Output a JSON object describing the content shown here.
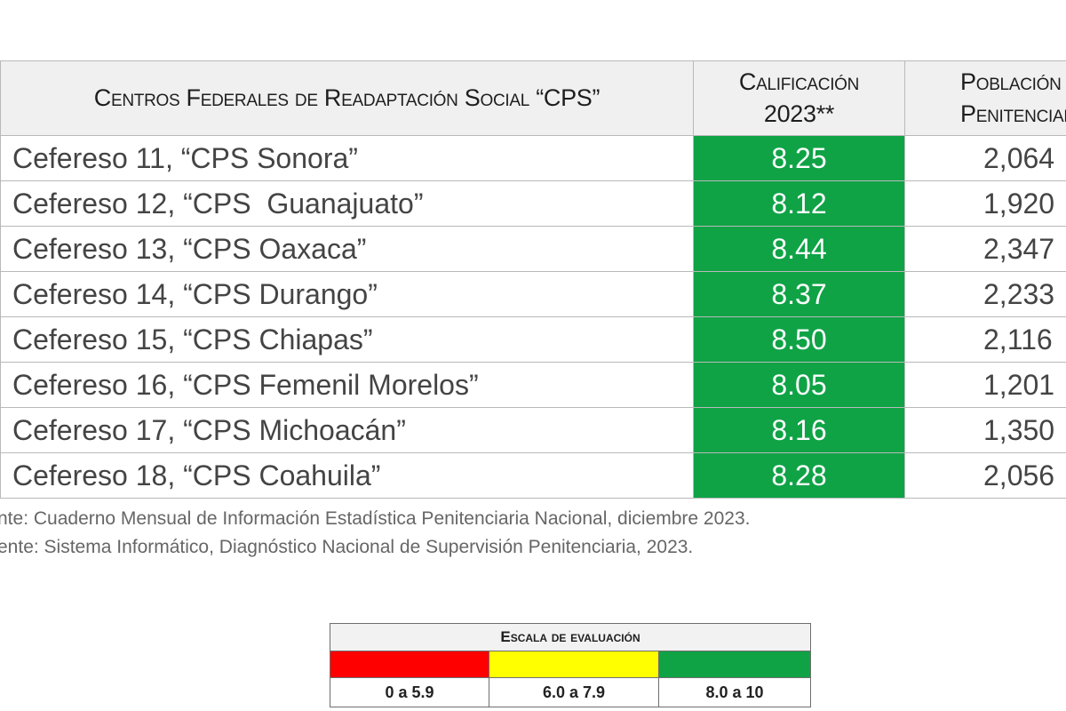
{
  "table": {
    "headers": {
      "name": "Centros Federales de Readaptación Social “CPS”",
      "score_line1": "Calificación",
      "score_line2": "2023**",
      "pop_line1": "Población",
      "pop_line2": "Penitenciaria"
    },
    "score_color": "#0fa346",
    "rows": [
      {
        "name": "Cefereso 11, “CPS Sonora”",
        "score": "8.25",
        "pop": "2,064"
      },
      {
        "name": "Cefereso 12, “CPS  Guanajuato”",
        "score": "8.12",
        "pop": "1,920"
      },
      {
        "name": "Cefereso 13, “CPS Oaxaca”",
        "score": "8.44",
        "pop": "2,347"
      },
      {
        "name": "Cefereso 14, “CPS Durango”",
        "score": "8.37",
        "pop": "2,233"
      },
      {
        "name": "Cefereso 15, “CPS Chiapas”",
        "score": "8.50",
        "pop": "2,116"
      },
      {
        "name": "Cefereso 16, “CPS Femenil Morelos”",
        "score": "8.05",
        "pop": "1,201"
      },
      {
        "name": "Cefereso 17, “CPS Michoacán”",
        "score": "8.16",
        "pop": "1,350"
      },
      {
        "name": "Cefereso 18, “CPS Coahuila”",
        "score": "8.28",
        "pop": "2,056"
      }
    ]
  },
  "notes": [
    "nte: Cuaderno Mensual de Información Estadística Penitenciaria Nacional, diciembre 2023.",
    "ente: Sistema Informático, Diagnóstico Nacional de Supervisión Penitenciaria, 2023."
  ],
  "legend": {
    "title": "Escala de evaluación",
    "items": [
      {
        "label": "0 a 5.9",
        "color": "#ff0000"
      },
      {
        "label": "6.0 a 7.9",
        "color": "#ffff00"
      },
      {
        "label": "8.0 a 10",
        "color": "#0fa346"
      }
    ]
  }
}
